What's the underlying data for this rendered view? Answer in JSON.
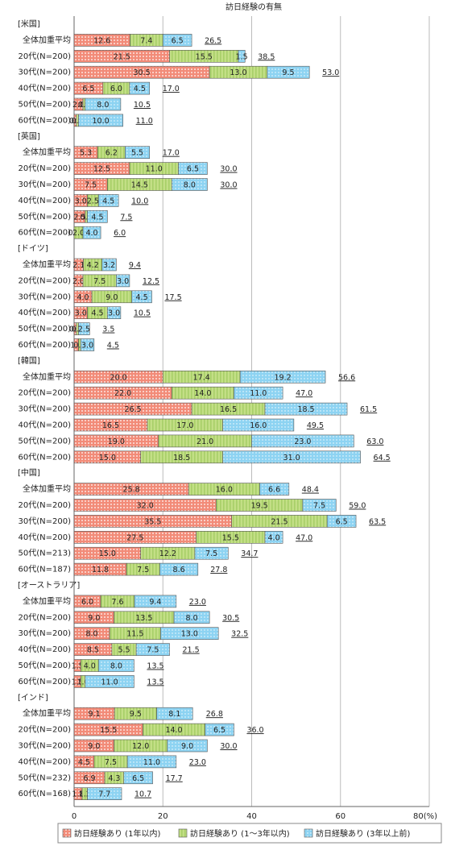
{
  "chart_data": {
    "type": "bar",
    "orientation": "horizontal",
    "stacked": true,
    "title": "訪日経験の有無",
    "xlim": [
      0,
      80
    ],
    "xticks": [
      0,
      20,
      40,
      {
        "value": 80,
        "label": "80(%)"
      },
      60
    ],
    "grid": true,
    "series": [
      {
        "name": "訪日経験あり (1年以内)",
        "color": "#f28b78"
      },
      {
        "name": "訪日経験あり (1～3年以内)",
        "color": "#c3df86"
      },
      {
        "name": "訪日経験あり (3年以上前)",
        "color": "#8dd3f2"
      }
    ],
    "groups": [
      {
        "name": "[米国]",
        "rows": [
          {
            "label": "全体加重平均",
            "values": [
              12.6,
              7.4,
              6.5
            ],
            "value_labels": [
              "12.6",
              "7.4",
              "6.5"
            ],
            "total": 26.5,
            "total_label": "26.5"
          },
          {
            "label": "20代(N=200)",
            "values": [
              21.5,
              15.5,
              1.5
            ],
            "value_labels": [
              "21.5",
              "15.5",
              "1.5"
            ],
            "total": 38.5,
            "total_label": "38.5"
          },
          {
            "label": "30代(N=200)",
            "values": [
              30.5,
              13,
              9.5
            ],
            "value_labels": [
              "30.5",
              "13.0",
              "9.5"
            ],
            "total": 53,
            "total_label": "53.0"
          },
          {
            "label": "40代(N=200)",
            "values": [
              6.5,
              6,
              4.5
            ],
            "value_labels": [
              "6.5",
              "6.0",
              "4.5"
            ],
            "total": 17,
            "total_label": "17.0"
          },
          {
            "label": "50代(N=200)",
            "values": [
              2,
              0.5,
              8
            ],
            "value_labels": [
              "2.0",
              "0.5",
              "8.0"
            ],
            "total": 10.5,
            "total_label": "10.5"
          },
          {
            "label": "60代(N=200)",
            "values": [
              0.5,
              0.5,
              10
            ],
            "value_labels": [
              "0.5",
              "0.5",
              "10.0"
            ],
            "total": 11,
            "total_label": "11.0"
          }
        ]
      },
      {
        "name": "[英国]",
        "rows": [
          {
            "label": "全体加重平均",
            "values": [
              5.3,
              6.2,
              5.5
            ],
            "value_labels": [
              "5.3",
              "6.2",
              "5.5"
            ],
            "total": 17,
            "total_label": "17.0"
          },
          {
            "label": "20代(N=200)",
            "values": [
              12.5,
              11,
              6.5
            ],
            "value_labels": [
              "12.5",
              "11.0",
              "6.5"
            ],
            "total": 30,
            "total_label": "30.0"
          },
          {
            "label": "30代(N=200)",
            "values": [
              7.5,
              14.5,
              8
            ],
            "value_labels": [
              "7.5",
              "14.5",
              "8.0"
            ],
            "total": 30,
            "total_label": "30.0"
          },
          {
            "label": "40代(N=200)",
            "values": [
              3,
              2.5,
              4.5
            ],
            "value_labels": [
              "3.0",
              "2.5",
              "4.5"
            ],
            "total": 10,
            "total_label": "10.0"
          },
          {
            "label": "50代(N=200)",
            "values": [
              2.5,
              0.5,
              4.5
            ],
            "value_labels": [
              "2.5",
              "0.5",
              "4.5"
            ],
            "total": 7.5,
            "total_label": "7.5"
          },
          {
            "label": "60代(N=200)",
            "values": [
              0,
              2,
              4
            ],
            "value_labels": [
              "0.0",
              "2.0",
              "4.0"
            ],
            "total": 6,
            "total_label": "6.0"
          }
        ]
      },
      {
        "name": "[ドイツ]",
        "rows": [
          {
            "label": "全体加重平均",
            "values": [
              2.1,
              4.2,
              3.2
            ],
            "value_labels": [
              "2.1",
              "4.2",
              "3.2"
            ],
            "total": 9.4,
            "total_label": "9.4"
          },
          {
            "label": "20代(N=200)",
            "values": [
              2,
              7.5,
              3
            ],
            "value_labels": [
              "2.0",
              "7.5",
              "3.0"
            ],
            "total": 12.5,
            "total_label": "12.5"
          },
          {
            "label": "30代(N=200)",
            "values": [
              4,
              9,
              4.5
            ],
            "value_labels": [
              "4.0",
              "9.0",
              "4.5"
            ],
            "total": 17.5,
            "total_label": "17.5"
          },
          {
            "label": "40代(N=200)",
            "values": [
              3,
              4.5,
              3
            ],
            "value_labels": [
              "3.0",
              "4.5",
              "3.0"
            ],
            "total": 10.5,
            "total_label": "10.5"
          },
          {
            "label": "50代(N=200)",
            "values": [
              0.5,
              0.5,
              2.5
            ],
            "value_labels": [
              "0.5",
              "0.5",
              "2.5"
            ],
            "total": 3.5,
            "total_label": "3.5"
          },
          {
            "label": "60代(N=200)",
            "values": [
              1,
              0.5,
              3
            ],
            "value_labels": [
              "1.0",
              "0.5",
              "3.0"
            ],
            "total": 4.5,
            "total_label": "4.5"
          }
        ]
      },
      {
        "name": "[韓国]",
        "rows": [
          {
            "label": "全体加重平均",
            "values": [
              20,
              17.4,
              19.2
            ],
            "value_labels": [
              "20.0",
              "17.4",
              "19.2"
            ],
            "total": 56.6,
            "total_label": "56.6"
          },
          {
            "label": "20代(N=200)",
            "values": [
              22,
              14,
              11
            ],
            "value_labels": [
              "22.0",
              "14.0",
              "11.0"
            ],
            "total": 47,
            "total_label": "47.0"
          },
          {
            "label": "30代(N=200)",
            "values": [
              26.5,
              16.5,
              18.5
            ],
            "value_labels": [
              "26.5",
              "16.5",
              "18.5"
            ],
            "total": 61.5,
            "total_label": "61.5"
          },
          {
            "label": "40代(N=200)",
            "values": [
              16.5,
              17,
              16
            ],
            "value_labels": [
              "16.5",
              "17.0",
              "16.0"
            ],
            "total": 49.5,
            "total_label": "49.5"
          },
          {
            "label": "50代(N=200)",
            "values": [
              19,
              21,
              23
            ],
            "value_labels": [
              "19.0",
              "21.0",
              "23.0"
            ],
            "total": 63,
            "total_label": "63.0"
          },
          {
            "label": "60代(N=200)",
            "values": [
              15,
              18.5,
              31
            ],
            "value_labels": [
              "15.0",
              "18.5",
              "31.0"
            ],
            "total": 64.5,
            "total_label": "64.5"
          }
        ]
      },
      {
        "name": "[中国]",
        "rows": [
          {
            "label": "全体加重平均",
            "values": [
              25.8,
              16,
              6.6
            ],
            "value_labels": [
              "25.8",
              "16.0",
              "6.6"
            ],
            "total": 48.4,
            "total_label": "48.4"
          },
          {
            "label": "20代(N=200)",
            "values": [
              32,
              19.5,
              7.5
            ],
            "value_labels": [
              "32.0",
              "19.5",
              "7.5"
            ],
            "total": 59,
            "total_label": "59.0"
          },
          {
            "label": "30代(N=200)",
            "values": [
              35.5,
              21.5,
              6.5
            ],
            "value_labels": [
              "35.5",
              "21.5",
              "6.5"
            ],
            "total": 63.5,
            "total_label": "63.5"
          },
          {
            "label": "40代(N=200)",
            "values": [
              27.5,
              15.5,
              4
            ],
            "value_labels": [
              "27.5",
              "15.5",
              "4.0"
            ],
            "total": 47,
            "total_label": "47.0"
          },
          {
            "label": "50代(N=213)",
            "values": [
              15,
              12.2,
              7.5
            ],
            "value_labels": [
              "15.0",
              "12.2",
              "7.5"
            ],
            "total": 34.7,
            "total_label": "34.7"
          },
          {
            "label": "60代(N=187)",
            "values": [
              11.8,
              7.5,
              8.6
            ],
            "value_labels": [
              "11.8",
              "7.5",
              "8.6"
            ],
            "total": 27.8,
            "total_label": "27.8"
          }
        ]
      },
      {
        "name": "[オーストラリア]",
        "rows": [
          {
            "label": "全体加重平均",
            "values": [
              6,
              7.6,
              9.4
            ],
            "value_labels": [
              "6.0",
              "7.6",
              "9.4"
            ],
            "total": 23,
            "total_label": "23.0"
          },
          {
            "label": "20代(N=200)",
            "values": [
              9,
              13.5,
              8
            ],
            "value_labels": [
              "9.0",
              "13.5",
              "8.0"
            ],
            "total": 30.5,
            "total_label": "30.5"
          },
          {
            "label": "30代(N=200)",
            "values": [
              8,
              11.5,
              13
            ],
            "value_labels": [
              "8.0",
              "11.5",
              "13.0"
            ],
            "total": 32.5,
            "total_label": "32.5"
          },
          {
            "label": "40代(N=200)",
            "values": [
              8.5,
              5.5,
              7.5
            ],
            "value_labels": [
              "8.5",
              "5.5",
              "7.5"
            ],
            "total": 21.5,
            "total_label": "21.5"
          },
          {
            "label": "50代(N=200)",
            "values": [
              1.5,
              4,
              8
            ],
            "value_labels": [
              "1.5",
              "4.0",
              "8.0"
            ],
            "total": 13.5,
            "total_label": "13.5"
          },
          {
            "label": "60代(N=200)",
            "values": [
              1.5,
              1,
              11
            ],
            "value_labels": [
              "1.5",
              "1.0",
              "11.0"
            ],
            "total": 13.5,
            "total_label": "13.5"
          }
        ]
      },
      {
        "name": "[インド]",
        "rows": [
          {
            "label": "全体加重平均",
            "values": [
              9.1,
              9.5,
              8.1
            ],
            "value_labels": [
              "9.1",
              "9.5",
              "8.1"
            ],
            "total": 26.8,
            "total_label": "26.8"
          },
          {
            "label": "20代(N=200)",
            "values": [
              15.5,
              14,
              6.5
            ],
            "value_labels": [
              "15.5",
              "14.0",
              "6.5"
            ],
            "total": 36,
            "total_label": "36.0"
          },
          {
            "label": "30代(N=200)",
            "values": [
              9,
              12,
              9
            ],
            "value_labels": [
              "9.0",
              "12.0",
              "9.0"
            ],
            "total": 30,
            "total_label": "30.0"
          },
          {
            "label": "40代(N=200)",
            "values": [
              4.5,
              7.5,
              11
            ],
            "value_labels": [
              "4.5",
              "7.5",
              "11.0"
            ],
            "total": 23,
            "total_label": "23.0"
          },
          {
            "label": "50代(N=232)",
            "values": [
              6.9,
              4.3,
              6.5
            ],
            "value_labels": [
              "6.9",
              "4.3",
              "6.5"
            ],
            "total": 17.7,
            "total_label": "17.7"
          },
          {
            "label": "60代(N=168)",
            "values": [
              1.8,
              1.2,
              7.7
            ],
            "value_labels": [
              "1.8",
              "1.2",
              "7.7"
            ],
            "total": 10.7,
            "total_label": "10.7"
          }
        ]
      }
    ]
  }
}
